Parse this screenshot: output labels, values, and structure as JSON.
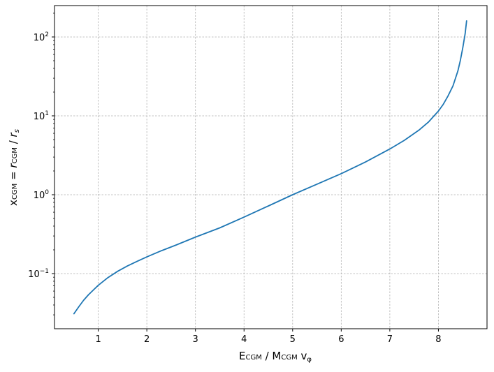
{
  "chart_data": {
    "type": "line",
    "title": "",
    "xlabel": {
      "main": "E",
      "sub1": "CGM",
      "mid": " / M",
      "sub2": "CGM",
      "tail": " v",
      "sub3": "φ"
    },
    "ylabel": {
      "main": "x",
      "sub1": "CGM",
      "mid": " = ",
      "r": "r",
      "sub2": "CGM",
      "slash": " / ",
      "rs": "r",
      "sub3": "s"
    },
    "xlim": [
      0.1,
      9.0
    ],
    "ylim": [
      0.02,
      250
    ],
    "yscale": "log",
    "grid": true,
    "x_ticks": [
      1,
      2,
      3,
      4,
      5,
      6,
      7,
      8
    ],
    "y_ticks": [
      {
        "value": 0.1,
        "base": "10",
        "exp": "−1"
      },
      {
        "value": 1,
        "base": "10",
        "exp": "0"
      },
      {
        "value": 10,
        "base": "10",
        "exp": "1"
      },
      {
        "value": 100,
        "base": "10",
        "exp": "2"
      }
    ],
    "series": [
      {
        "color": "#1f77b4",
        "x": [
          0.5,
          0.6,
          0.7,
          0.8,
          0.9,
          1.0,
          1.2,
          1.4,
          1.6,
          1.8,
          2.0,
          2.3,
          2.6,
          3.0,
          3.5,
          4.0,
          4.5,
          5.0,
          5.5,
          6.0,
          6.5,
          7.0,
          7.3,
          7.6,
          7.8,
          8.0,
          8.1,
          8.2,
          8.3,
          8.4,
          8.45,
          8.5,
          8.55,
          8.58
        ],
        "y": [
          0.031,
          0.038,
          0.046,
          0.054,
          0.062,
          0.071,
          0.089,
          0.107,
          0.125,
          0.143,
          0.163,
          0.195,
          0.23,
          0.29,
          0.38,
          0.52,
          0.72,
          1.0,
          1.36,
          1.85,
          2.6,
          3.8,
          4.9,
          6.6,
          8.4,
          11.5,
          14.0,
          18.0,
          24.0,
          37.0,
          50.0,
          72.0,
          110.0,
          160.0
        ]
      }
    ]
  }
}
